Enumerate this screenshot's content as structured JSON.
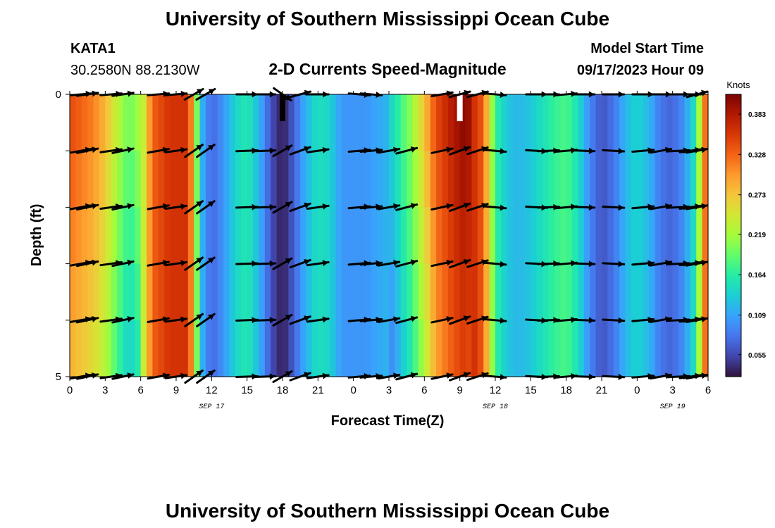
{
  "page": {
    "title": "University of Southern Mississippi Ocean Cube",
    "footer_title": "University of Southern Mississippi Ocean Cube"
  },
  "station": {
    "id": "KATA1",
    "coords": "30.2580N  88.2130W"
  },
  "model_start": {
    "label": "Model Start Time",
    "value": "09/17/2023 Hour 09"
  },
  "chart_data": {
    "type": "heatmap",
    "title": "2-D Currents Speed-Magnitude",
    "xlabel": "Forecast Time(Z)",
    "ylabel": "Depth (ft)",
    "x_range_hours": [
      0,
      54
    ],
    "y_range_ft": [
      0,
      5
    ],
    "x_ticks": [
      {
        "h": 0,
        "label": "0"
      },
      {
        "h": 3,
        "label": "3"
      },
      {
        "h": 6,
        "label": "6"
      },
      {
        "h": 9,
        "label": "9"
      },
      {
        "h": 12,
        "label": "12"
      },
      {
        "h": 15,
        "label": "15"
      },
      {
        "h": 18,
        "label": "18"
      },
      {
        "h": 21,
        "label": "21"
      },
      {
        "h": 24,
        "label": "0"
      },
      {
        "h": 27,
        "label": "3"
      },
      {
        "h": 30,
        "label": "6"
      },
      {
        "h": 33,
        "label": "9"
      },
      {
        "h": 36,
        "label": "12"
      },
      {
        "h": 39,
        "label": "15"
      },
      {
        "h": 42,
        "label": "18"
      },
      {
        "h": 45,
        "label": "21"
      },
      {
        "h": 48,
        "label": "0"
      },
      {
        "h": 51,
        "label": "3"
      },
      {
        "h": 54,
        "label": "6"
      }
    ],
    "y_ticks": [
      {
        "v": 0,
        "label": "0"
      },
      {
        "v": 5,
        "label": "5"
      }
    ],
    "date_labels": [
      {
        "h": 12,
        "label": "SEP 17"
      },
      {
        "h": 36,
        "label": "SEP 18"
      },
      {
        "h": 51,
        "label": "SEP 19"
      }
    ],
    "colorbar": {
      "units": "Knots",
      "min": 0.025,
      "max": 0.41,
      "ticks": [
        "0.383",
        "0.328",
        "0.273",
        "0.219",
        "0.164",
        "0.109",
        "0.055"
      ],
      "colors": [
        "#30123b",
        "#4145ab",
        "#4675ed",
        "#39a2fc",
        "#1bcfd4",
        "#24eca6",
        "#61fc6c",
        "#a4fc3b",
        "#d1e834",
        "#f3c63a",
        "#fe9b2d",
        "#f36315",
        "#d93806",
        "#b11901",
        "#7a0402"
      ]
    },
    "speed_profile_knots": [
      {
        "h": 0,
        "s": 0.33
      },
      {
        "h": 2,
        "s": 0.3
      },
      {
        "h": 3,
        "s": 0.27
      },
      {
        "h": 4,
        "s": 0.22
      },
      {
        "h": 5,
        "s": 0.18
      },
      {
        "h": 6,
        "s": 0.21
      },
      {
        "h": 7,
        "s": 0.33
      },
      {
        "h": 8.5,
        "s": 0.36
      },
      {
        "h": 10,
        "s": 0.36
      },
      {
        "h": 10.5,
        "s": 0.27
      },
      {
        "h": 11,
        "s": 0.13
      },
      {
        "h": 12,
        "s": 0.07
      },
      {
        "h": 13,
        "s": 0.1
      },
      {
        "h": 14,
        "s": 0.14
      },
      {
        "h": 15,
        "s": 0.16
      },
      {
        "h": 16,
        "s": 0.12
      },
      {
        "h": 17,
        "s": 0.06
      },
      {
        "h": 18,
        "s": 0.03
      },
      {
        "h": 19,
        "s": 0.07
      },
      {
        "h": 20,
        "s": 0.12
      },
      {
        "h": 21,
        "s": 0.15
      },
      {
        "h": 22,
        "s": 0.14
      },
      {
        "h": 23,
        "s": 0.1
      },
      {
        "h": 25,
        "s": 0.1
      },
      {
        "h": 27,
        "s": 0.12
      },
      {
        "h": 28,
        "s": 0.16
      },
      {
        "h": 29,
        "s": 0.2
      },
      {
        "h": 30,
        "s": 0.26
      },
      {
        "h": 31,
        "s": 0.33
      },
      {
        "h": 32.5,
        "s": 0.37
      },
      {
        "h": 33.5,
        "s": 0.39
      },
      {
        "h": 35,
        "s": 0.33
      },
      {
        "h": 35.5,
        "s": 0.25
      },
      {
        "h": 36,
        "s": 0.17
      },
      {
        "h": 37,
        "s": 0.13
      },
      {
        "h": 38,
        "s": 0.12
      },
      {
        "h": 39,
        "s": 0.13
      },
      {
        "h": 40,
        "s": 0.15
      },
      {
        "h": 41,
        "s": 0.17
      },
      {
        "h": 42,
        "s": 0.18
      },
      {
        "h": 43,
        "s": 0.15
      },
      {
        "h": 44,
        "s": 0.09
      },
      {
        "h": 45,
        "s": 0.06
      },
      {
        "h": 46,
        "s": 0.08
      },
      {
        "h": 47,
        "s": 0.12
      },
      {
        "h": 48,
        "s": 0.14
      },
      {
        "h": 49,
        "s": 0.12
      },
      {
        "h": 50,
        "s": 0.08
      },
      {
        "h": 51,
        "s": 0.07
      },
      {
        "h": 52,
        "s": 0.1
      },
      {
        "h": 53,
        "s": 0.16
      },
      {
        "h": 53.5,
        "s": 0.28
      },
      {
        "h": 54,
        "s": 0.36
      }
    ],
    "depth_rows": [
      0.5,
      1.5,
      2.5,
      3.5,
      4.5
    ],
    "depth_variation": [
      {
        "h_from": 0,
        "h_to": 6,
        "top_delta": 0.02,
        "bottom_delta": -0.05
      },
      {
        "h_from": 27,
        "h_to": 34,
        "top_delta": 0.02,
        "bottom_delta": -0.04
      }
    ],
    "vectors": {
      "depths": [
        0,
        1,
        2,
        3,
        4,
        5
      ],
      "times_h": [
        0,
        1.5,
        3.5,
        4.5,
        7.5,
        9,
        10.5,
        11.5,
        15,
        16.5,
        18,
        19.5,
        21,
        24.5,
        25.5,
        27,
        28.5,
        31.5,
        33,
        34.5,
        36,
        39.5,
        40.5,
        42,
        43.5,
        46,
        48.5,
        50,
        51.5,
        52.5,
        54
      ],
      "dir_deg": [
        10,
        12,
        8,
        12,
        10,
        8,
        35,
        35,
        2,
        2,
        30,
        20,
        8,
        5,
        5,
        10,
        15,
        12,
        20,
        18,
        -5,
        -3,
        2,
        5,
        -2,
        -3,
        5,
        10,
        3,
        8,
        10
      ],
      "top_row_dir_deg": [
        5,
        8,
        5,
        8,
        5,
        5,
        30,
        30,
        0,
        0,
        -35,
        15,
        0,
        -5,
        -5,
        0,
        10,
        10,
        15,
        15,
        -5,
        0,
        0,
        5,
        0,
        0,
        0,
        0,
        0,
        0,
        15
      ],
      "missing_at_top_h": [
        27,
        28.5
      ]
    },
    "markers": [
      {
        "h": 18,
        "from_ft": 0,
        "to_ft": 0.5,
        "color": "#000000"
      },
      {
        "h": 33,
        "from_ft": 0,
        "to_ft": 0.5,
        "color": "#ffffff"
      }
    ]
  }
}
